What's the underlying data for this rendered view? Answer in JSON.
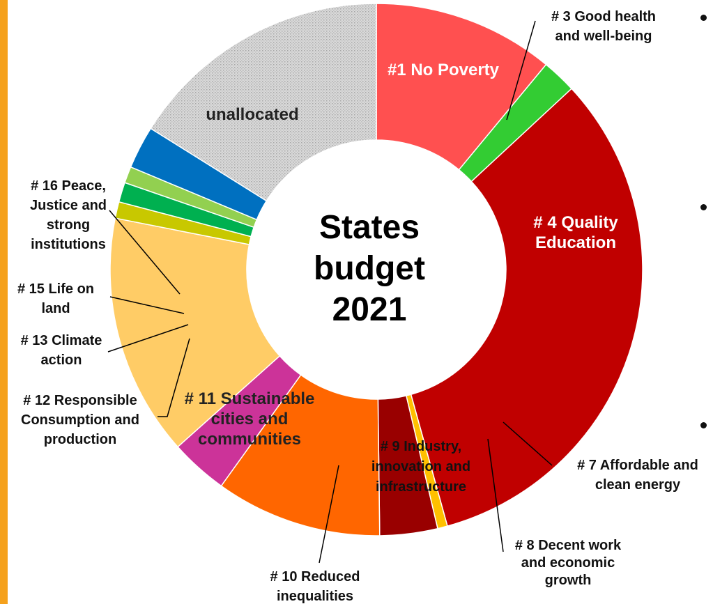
{
  "chart_data": {
    "type": "donut",
    "center_title": [
      "States",
      "budget",
      "2021"
    ],
    "slices": [
      {
        "label": "#1 No Poverty",
        "value": 11.0,
        "color": "#ff5050",
        "lines": [
          "#1 No Poverty"
        ]
      },
      {
        "label": "# 3 Good health and well-being",
        "value": 2.1,
        "color": "#33cc33",
        "lines": [
          "# 3 Good health",
          "and well-being"
        ]
      },
      {
        "label": "# 4 Quality Education",
        "value": 32.6,
        "color": "#c00000",
        "lines": [
          "# 4 Quality",
          "Education"
        ]
      },
      {
        "label": "# 7 Affordable and clean energy",
        "value": 0.6,
        "color": "#ffc000",
        "lines": [
          "# 7 Affordable and",
          "clean energy"
        ]
      },
      {
        "label": "# 8 Decent work and economic growth",
        "value": 3.5,
        "color": "#990000",
        "lines": [
          "# 8 Decent work",
          "and economic",
          "growth"
        ]
      },
      {
        "label": "# 9 Industry, innovation and infrastructure",
        "value": 10.1,
        "color": "#ff6600",
        "lines": [
          "# 9 Industry,",
          "innovation and",
          "infrastructure"
        ]
      },
      {
        "label": "# 10 Reduced inequalities",
        "value": 3.5,
        "color": "#cc3399",
        "lines": [
          "# 10 Reduced",
          "inequalities"
        ]
      },
      {
        "label": "# 11 Sustainable cities and communities",
        "value": 14.7,
        "color": "#ffcc66",
        "lines": [
          "# 11 Sustainable",
          "cities and",
          "communities"
        ]
      },
      {
        "label": "# 12 Responsible Consumption and production",
        "value": 1.0,
        "color": "#c8c800",
        "lines": [
          "# 12 Responsible",
          "Consumption and",
          "production"
        ]
      },
      {
        "label": "# 13 Climate action",
        "value": 1.2,
        "color": "#00b050",
        "lines": [
          "# 13 Climate",
          "action"
        ]
      },
      {
        "label": "# 15 Life on land",
        "value": 1.0,
        "color": "#92d050",
        "lines": [
          "# 15 Life on",
          "land"
        ]
      },
      {
        "label": "# 16 Peace, Justice and strong institutions",
        "value": 2.6,
        "color": "#0070c0",
        "lines": [
          "# 16 Peace,",
          "Justice and",
          "strong",
          "institutions"
        ]
      },
      {
        "label": "unallocated",
        "value": 16.1,
        "color": "#d9d9d9",
        "lines": [
          "unallocated"
        ]
      }
    ]
  }
}
